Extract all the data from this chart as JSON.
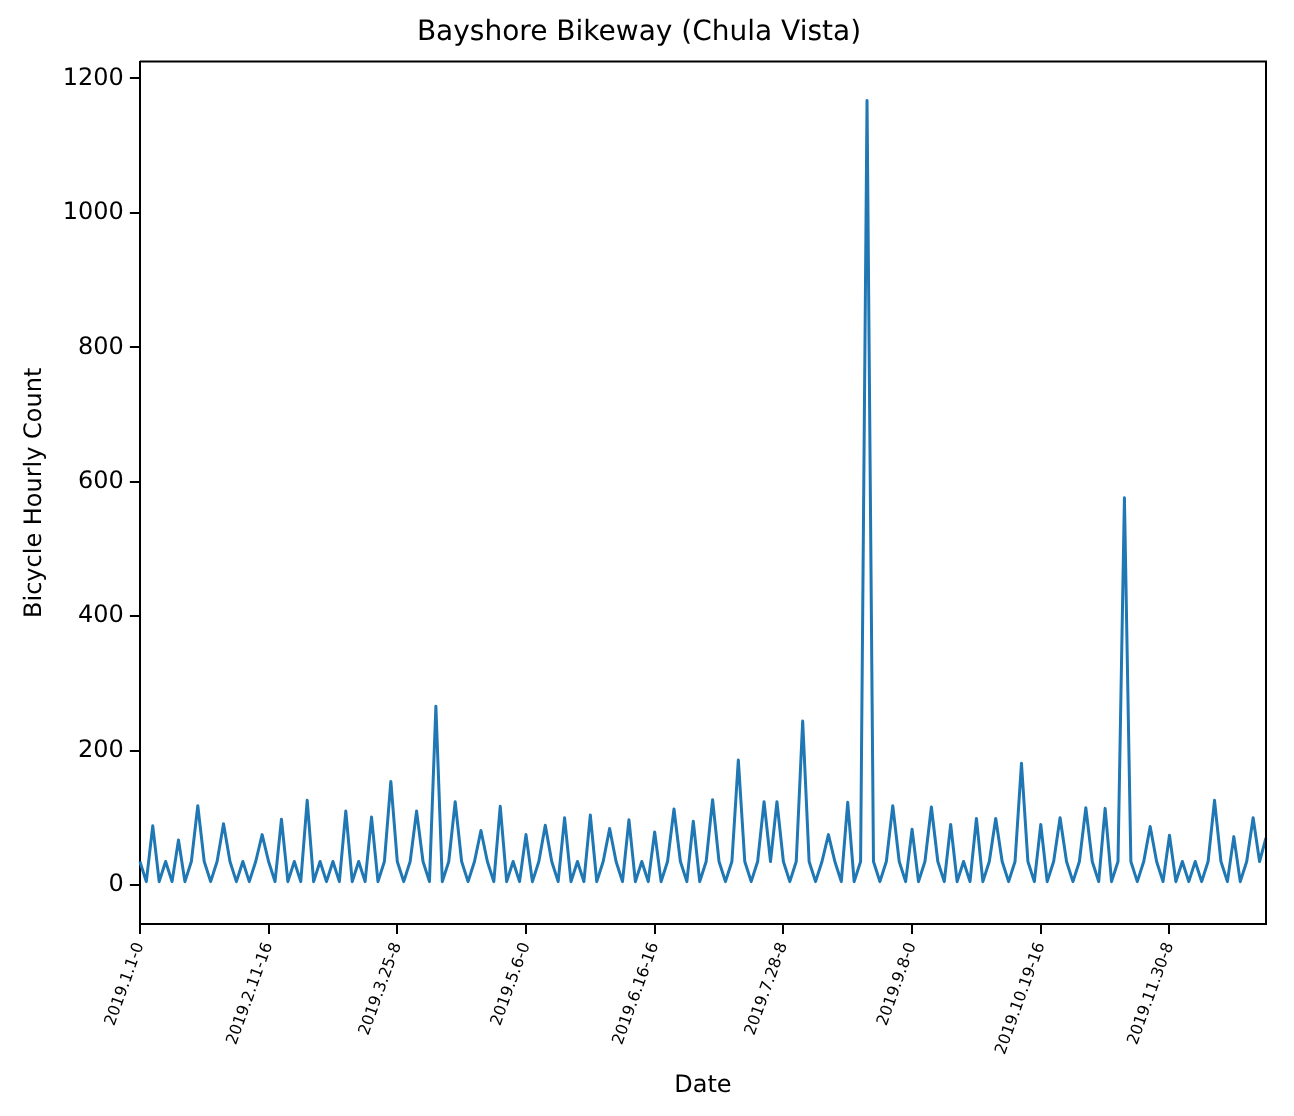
{
  "chart_data": {
    "type": "line",
    "title": "Bayshore Bikeway (Chula Vista)",
    "xlabel": "Date",
    "ylabel": "Bicycle Hourly Count",
    "categories": [
      "2019.1.1-0",
      null,
      null,
      null,
      null,
      null,
      null,
      null,
      null,
      null,
      null,
      null,
      null,
      null,
      null,
      null,
      null,
      null,
      null,
      null,
      "2019.2.11-16",
      null,
      null,
      null,
      null,
      null,
      null,
      null,
      null,
      null,
      null,
      null,
      null,
      null,
      null,
      null,
      null,
      null,
      null,
      null,
      "2019.3.25-8",
      null,
      null,
      null,
      null,
      null,
      null,
      null,
      null,
      null,
      null,
      null,
      null,
      null,
      null,
      null,
      null,
      null,
      null,
      null,
      "2019.5.6-0",
      null,
      null,
      null,
      null,
      null,
      null,
      null,
      null,
      null,
      null,
      null,
      null,
      null,
      null,
      null,
      null,
      null,
      null,
      null,
      "2019.6.16-16",
      null,
      null,
      null,
      null,
      null,
      null,
      null,
      null,
      null,
      null,
      null,
      null,
      null,
      null,
      null,
      null,
      null,
      null,
      null,
      "2019.7.28-8",
      null,
      null,
      null,
      null,
      null,
      null,
      null,
      null,
      null,
      null,
      null,
      null,
      null,
      null,
      null,
      null,
      null,
      null,
      null,
      "2019.9.8-0",
      null,
      null,
      null,
      null,
      null,
      null,
      null,
      null,
      null,
      null,
      null,
      null,
      null,
      null,
      null,
      null,
      null,
      null,
      null,
      "2019.10.19-16",
      null,
      null,
      null,
      null,
      null,
      null,
      null,
      null,
      null,
      null,
      null,
      null,
      null,
      null,
      null,
      null,
      null,
      null,
      null,
      "2019.11.30-8",
      null,
      null,
      null,
      null,
      null,
      null,
      null,
      null,
      null,
      null,
      null,
      null,
      null,
      null,
      null
    ],
    "ylim": [
      -58,
      1225
    ],
    "yticks": [
      0,
      200,
      400,
      600,
      800,
      1000,
      1200
    ],
    "marker": "none",
    "series": [
      {
        "color": "#1f77b4",
        "values": [
          35,
          5,
          88,
          5,
          35,
          5,
          67,
          5,
          35,
          118,
          35,
          5,
          35,
          91,
          35,
          5,
          35,
          5,
          35,
          75,
          35,
          5,
          98,
          5,
          35,
          5,
          126,
          5,
          35,
          5,
          35,
          5,
          110,
          5,
          35,
          5,
          101,
          5,
          35,
          154,
          35,
          5,
          35,
          110,
          35,
          5,
          266,
          5,
          35,
          124,
          35,
          5,
          35,
          81,
          35,
          5,
          117,
          5,
          35,
          5,
          75,
          5,
          35,
          89,
          35,
          5,
          100,
          5,
          35,
          5,
          104,
          5,
          35,
          84,
          35,
          5,
          97,
          5,
          35,
          5,
          79,
          5,
          35,
          113,
          35,
          5,
          95,
          5,
          35,
          127,
          35,
          5,
          35,
          186,
          35,
          5,
          35,
          124,
          35,
          124,
          35,
          5,
          35,
          244,
          35,
          5,
          35,
          75,
          35,
          5,
          123,
          5,
          35,
          1167,
          35,
          5,
          35,
          118,
          35,
          5,
          83,
          5,
          35,
          116,
          35,
          5,
          90,
          5,
          35,
          5,
          99,
          5,
          35,
          99,
          35,
          5,
          35,
          181,
          35,
          5,
          90,
          5,
          35,
          100,
          35,
          5,
          35,
          115,
          35,
          5,
          114,
          5,
          35,
          576,
          35,
          5,
          35,
          87,
          35,
          5,
          74,
          5,
          35,
          5,
          35,
          5,
          35,
          126,
          35,
          5,
          72,
          5,
          35,
          100,
          35,
          70
        ]
      }
    ]
  }
}
